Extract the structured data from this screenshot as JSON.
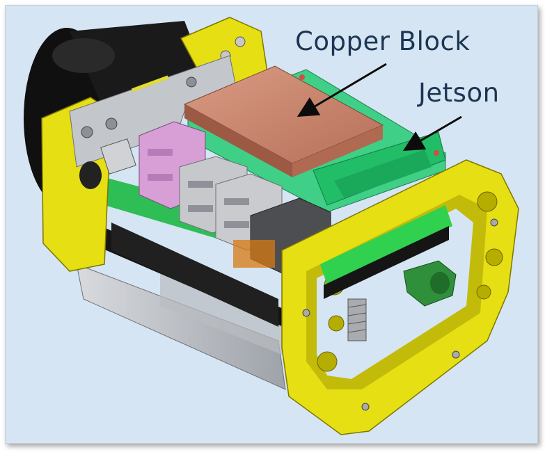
{
  "labels": {
    "copper_block": "Copper Block",
    "jetson": "Jetson"
  },
  "colors": {
    "background": "#d5e5f3",
    "frame_yellow": "#e6df14",
    "copper": "#c8806a",
    "board_green": "#2fc46a",
    "label_text": "#1c3553"
  }
}
